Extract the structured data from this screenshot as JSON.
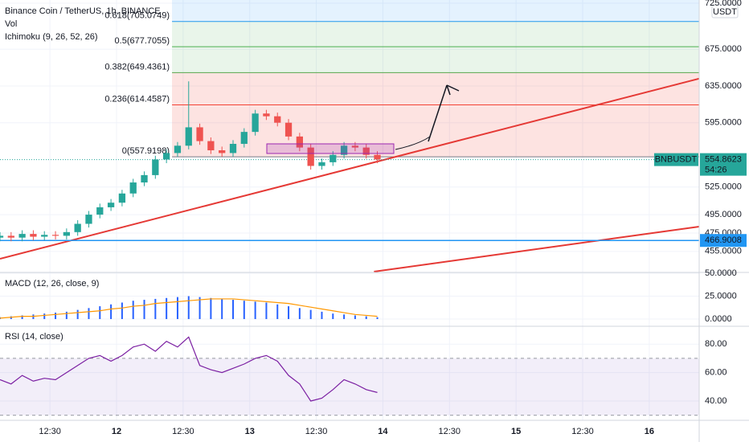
{
  "chart_data": [
    {
      "type": "candlestick",
      "title": "Binance Coin / TetherUS, 1h, BINANCE",
      "indicators": [
        "Vol",
        "Ichimoku (9, 26, 52, 26)"
      ],
      "currency": "USDT",
      "x": [
        -9,
        -7,
        -5,
        -3,
        -1,
        1,
        3,
        5,
        7,
        9,
        11,
        13,
        15,
        17,
        19,
        21,
        23,
        25,
        27,
        29,
        31,
        33,
        35,
        37,
        39,
        41,
        43,
        45,
        47,
        49,
        51,
        53,
        55,
        57,
        59
      ],
      "open": [
        470,
        472,
        470,
        474,
        471,
        473,
        472,
        476,
        485,
        495,
        503,
        508,
        518,
        530,
        538,
        555,
        562,
        570,
        590,
        575,
        565,
        562,
        572,
        585,
        605,
        602,
        595,
        580,
        568,
        548,
        552,
        560,
        570,
        568,
        560
      ],
      "high": [
        476,
        476,
        478,
        478,
        477,
        477,
        480,
        489,
        499,
        507,
        512,
        522,
        534,
        542,
        559,
        566,
        574,
        640,
        594,
        579,
        569,
        576,
        589,
        609,
        609,
        606,
        599,
        584,
        572,
        556,
        564,
        574,
        574,
        572,
        564
      ],
      "low": [
        466,
        466,
        466,
        467,
        467,
        468,
        468,
        472,
        481,
        491,
        499,
        504,
        514,
        526,
        534,
        551,
        558,
        566,
        571,
        561,
        558,
        558,
        568,
        581,
        598,
        591,
        576,
        564,
        544,
        544,
        548,
        556,
        564,
        556,
        551
      ],
      "close": [
        472,
        470,
        474,
        471,
        473,
        472,
        476,
        485,
        495,
        503,
        508,
        518,
        530,
        538,
        555,
        562,
        570,
        590,
        575,
        565,
        562,
        572,
        585,
        605,
        602,
        595,
        580,
        568,
        548,
        552,
        560,
        570,
        568,
        560,
        555
      ],
      "up_color": "#26a69a",
      "down_color": "#ef5350",
      "xlim": [
        -9,
        117
      ],
      "xticks": [
        {
          "value": 0,
          "label": "12:30"
        },
        {
          "value": 12,
          "label": "12"
        },
        {
          "value": 24,
          "label": "12:30"
        },
        {
          "value": 36,
          "label": "13"
        },
        {
          "value": 48,
          "label": "12:30"
        },
        {
          "value": 60,
          "label": "14"
        },
        {
          "value": 72,
          "label": "12:30"
        },
        {
          "value": 84,
          "label": "15"
        },
        {
          "value": 96,
          "label": "12:30"
        },
        {
          "value": 108,
          "label": "16"
        }
      ],
      "ylim": [
        433,
        728.5
      ],
      "yticks": [
        {
          "value": 725,
          "label": "725.0000"
        },
        {
          "value": 675,
          "label": "675.0000"
        },
        {
          "value": 635,
          "label": "635.0000"
        },
        {
          "value": 595,
          "label": "595.0000"
        },
        {
          "value": 525,
          "label": "525.0000"
        },
        {
          "value": 495,
          "label": "495.0000"
        },
        {
          "value": 475,
          "label": "475.0000"
        },
        {
          "value": 455,
          "label": "455.0000"
        }
      ],
      "fib_levels": [
        {
          "value": 705.0749,
          "label": "0.618(705.0749)"
        },
        {
          "value": 677.7055,
          "label": "0.5(677.7055)"
        },
        {
          "value": 649.4361,
          "label": "0.382(649.4361)"
        },
        {
          "value": 614.4587,
          "label": "0.236(614.4587)"
        },
        {
          "value": 557.9198,
          "label": "0(557.9198)"
        }
      ],
      "fib_start": 22,
      "last_price": {
        "value": 554.8623,
        "label": "554.8623",
        "symbol": "BNBUSDT",
        "countdown": "54:26"
      },
      "horizontal_line": {
        "value": 466.9008,
        "label": "466.9008",
        "color": "#2196f3"
      },
      "trendlines": [
        {
          "x": [
            -9,
            117
          ],
          "y": [
            447,
            643
          ],
          "color": "#e53935"
        },
        {
          "x": [
            58.4,
            117
          ],
          "y": [
            433,
            482
          ],
          "color": "#e53935"
        }
      ]
    },
    {
      "type": "macd",
      "title": "MACD (12, 26, close, 9)",
      "histogram": [
        2,
        3,
        4,
        5,
        6,
        7,
        8,
        10,
        12,
        14,
        16,
        18,
        20,
        21,
        22,
        23,
        24,
        25,
        24,
        23,
        22,
        21,
        20,
        19,
        18,
        16,
        14,
        12,
        10,
        8,
        6,
        5,
        4,
        3,
        2
      ],
      "signal": [
        1,
        2,
        3,
        3,
        4,
        5,
        6,
        7,
        8,
        9,
        11,
        12,
        14,
        15,
        17,
        18,
        19,
        20,
        21,
        22,
        22,
        22,
        21,
        20,
        19,
        18,
        17,
        15,
        13,
        11,
        9,
        7,
        5,
        4,
        3
      ],
      "hist_color": "#2962ff",
      "signal_color": "#ff9800",
      "ylim": [
        -7,
        50
      ],
      "yticks": [
        {
          "value": 50,
          "label": "50.0000"
        },
        {
          "value": 25,
          "label": "25.0000"
        },
        {
          "value": 0,
          "label": "0.0000"
        }
      ]
    },
    {
      "type": "rsi",
      "title": "RSI (14, close)",
      "values": [
        55,
        52,
        58,
        54,
        56,
        55,
        60,
        65,
        70,
        72,
        68,
        72,
        78,
        80,
        75,
        82,
        78,
        85,
        65,
        62,
        60,
        63,
        66,
        70,
        72,
        68,
        58,
        52,
        40,
        42,
        48,
        55,
        52,
        48,
        46
      ],
      "color": "#7b1fa2",
      "band": [
        30,
        70
      ],
      "ylim": [
        27,
        92
      ],
      "yticks": [
        {
          "value": 80,
          "label": "80.00"
        },
        {
          "value": 60,
          "label": "60.00"
        },
        {
          "value": 40,
          "label": "40.00"
        }
      ]
    }
  ]
}
